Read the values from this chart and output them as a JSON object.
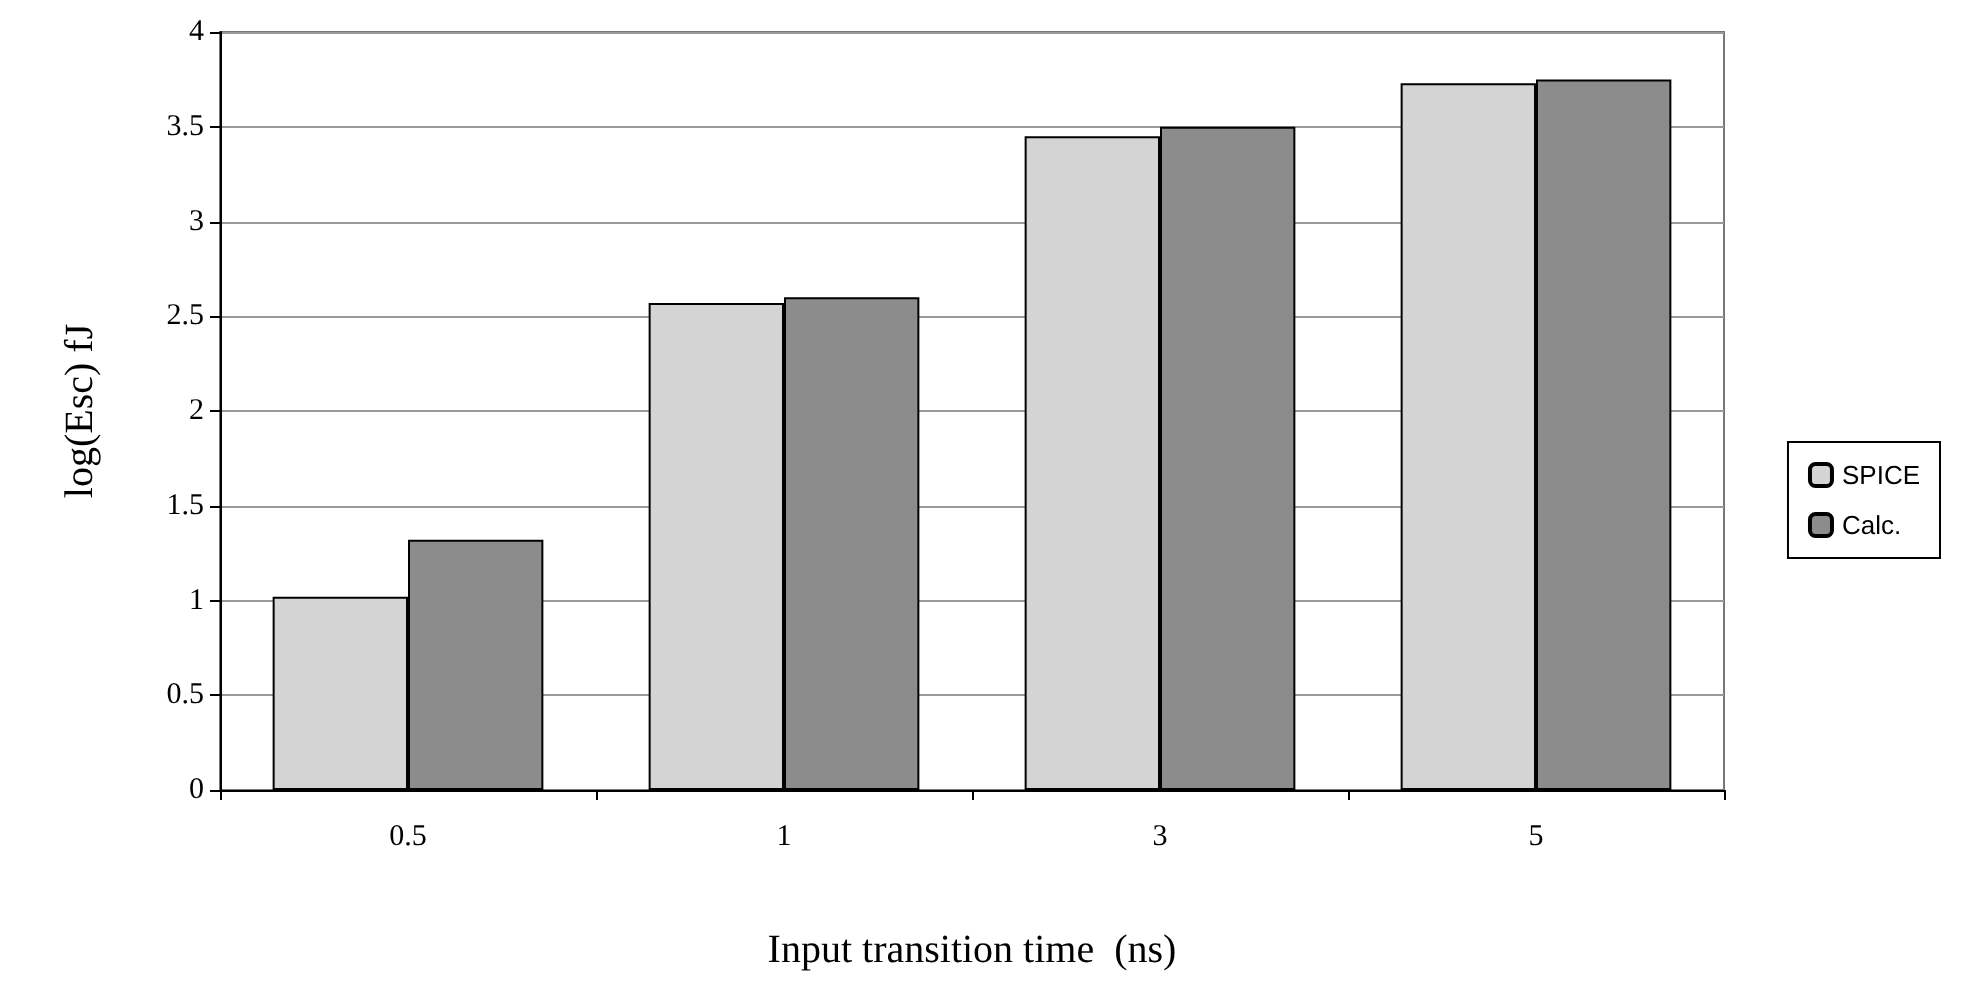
{
  "chart_data": {
    "type": "bar",
    "xlabel": "Input transition time  (ns)",
    "ylabel": "log(Esc) fJ",
    "categories": [
      "0.5",
      "1",
      "3",
      "5"
    ],
    "series": [
      {
        "name": "SPICE",
        "color": "#d4d4d4",
        "values": [
          1.02,
          2.57,
          3.45,
          3.73
        ]
      },
      {
        "name": "Calc.",
        "color": "#8c8c8c",
        "values": [
          1.32,
          2.6,
          3.5,
          3.75
        ]
      }
    ],
    "ylim": [
      0,
      4
    ],
    "yticks": [
      0,
      0.5,
      1,
      1.5,
      2,
      2.5,
      3,
      3.5,
      4
    ],
    "grid": "y",
    "legend": "right"
  }
}
